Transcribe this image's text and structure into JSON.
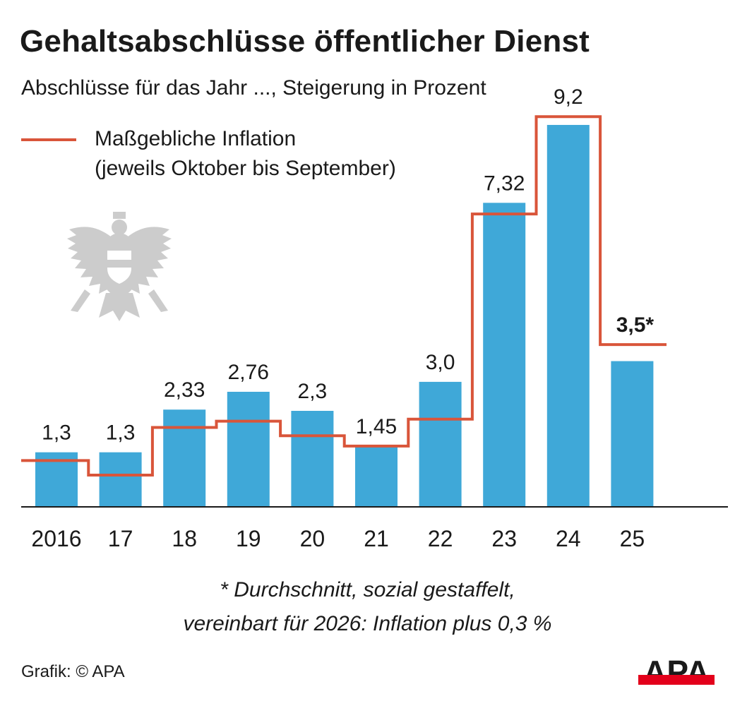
{
  "title": "Gehaltsabschlüsse öffentlicher Dienst",
  "subtitle": "Abschlüsse für das Jahr ..., Steigerung in Prozent",
  "legend": {
    "line1": "Maßgebliche Inflation",
    "line2": "(jeweils Oktober bis September)"
  },
  "footnote": {
    "line1": "* Durchschnitt, sozial gestaffelt,",
    "line2": "vereinbart für 2026: Inflation plus 0,3 %"
  },
  "credit": "Grafik: © APA",
  "logo_text": "APA",
  "colors": {
    "bar": "#3fa8d8",
    "inflation_line": "#d9553a",
    "axis": "#1a1a1a",
    "emblem": "#cccccc",
    "logo_bar": "#e3001b"
  },
  "icons": {
    "emblem": "austrian-eagle-emblem-icon",
    "logo": "apa-logo-icon"
  },
  "chart_data": {
    "type": "bar",
    "categories": [
      "2016",
      "17",
      "18",
      "19",
      "20",
      "21",
      "22",
      "23",
      "24",
      "25"
    ],
    "series": [
      {
        "values": [
          1.3,
          1.3,
          2.33,
          2.76,
          2.3,
          1.45,
          3.0,
          7.32,
          9.2,
          3.5
        ]
      },
      {
        "name": "Maßgebliche Inflation",
        "type": "step-line",
        "values": [
          1.1,
          0.75,
          1.9,
          2.05,
          1.7,
          1.45,
          2.1,
          7.05,
          9.4,
          3.9
        ]
      }
    ],
    "data_labels": [
      "1,3",
      "1,3",
      "2,33",
      "2,76",
      "2,3",
      "1,45",
      "3,0",
      "7,32",
      "9,2",
      "3,5*"
    ],
    "highlight_index": 9,
    "ylim": [
      0,
      10
    ],
    "grid": false,
    "legend_position": "top-left"
  }
}
